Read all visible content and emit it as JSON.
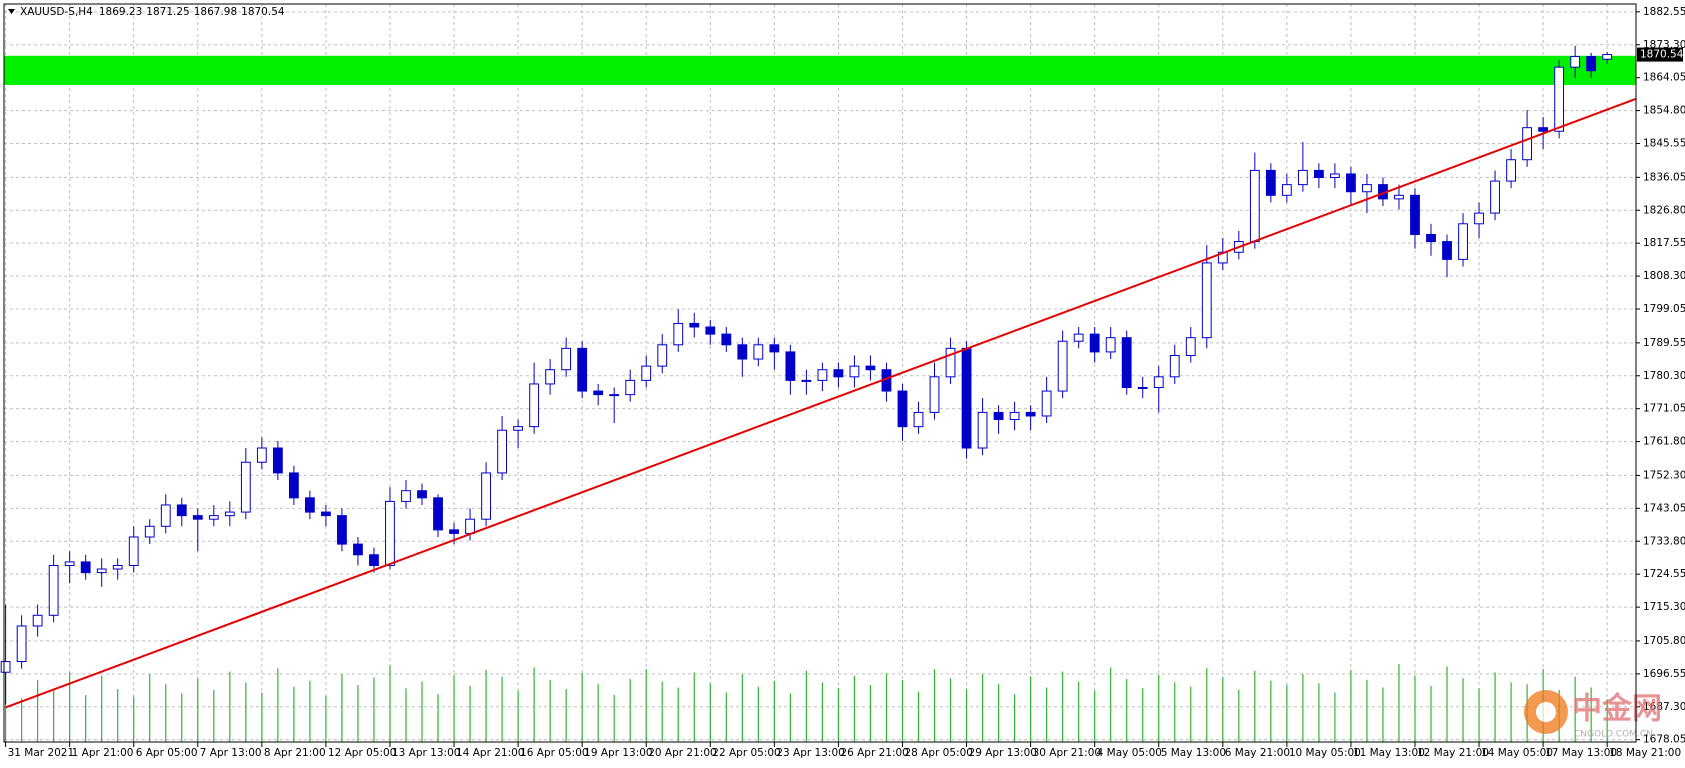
{
  "chart_data": {
    "type": "candlestick",
    "title": "XAUUSD-S,H4",
    "candles": {
      "open": [
        1697,
        1700,
        1710,
        1713,
        1727,
        1728,
        1725,
        1726,
        1727,
        1735,
        1738,
        1744,
        1741,
        1740,
        1741,
        1742,
        1756,
        1760,
        1753,
        1746,
        1742,
        1741,
        1733,
        1730,
        1727,
        1745,
        1748,
        1746,
        1737,
        1736,
        1740,
        1753,
        1765,
        1766,
        1778,
        1782,
        1788,
        1776,
        1775,
        1775,
        1779,
        1783,
        1789,
        1795,
        1794,
        1792,
        1789,
        1785,
        1789,
        1787,
        1779,
        1779,
        1782,
        1780,
        1783,
        1782,
        1776,
        1766,
        1770,
        1780,
        1788,
        1760,
        1770,
        1768,
        1770,
        1769,
        1776,
        1790,
        1792,
        1787,
        1791,
        1777,
        1777,
        1780,
        1786,
        1791,
        1812,
        1815,
        1818,
        1838,
        1831,
        1834,
        1838,
        1836,
        1837,
        1832,
        1834,
        1830,
        1831,
        1820,
        1818,
        1813,
        1823,
        1826,
        1835,
        1841,
        1850,
        1849,
        1867,
        1870,
        1869.23
      ],
      "high": [
        1716,
        1713,
        1716,
        1730,
        1731,
        1730,
        1729,
        1729,
        1738,
        1740,
        1747,
        1746,
        1743,
        1744,
        1745,
        1760,
        1763,
        1762,
        1755,
        1748,
        1744,
        1743,
        1735,
        1732,
        1749,
        1751,
        1750,
        1747,
        1739,
        1743,
        1756,
        1769,
        1768,
        1784,
        1785,
        1791,
        1790,
        1778,
        1777,
        1782,
        1786,
        1792,
        1799,
        1798,
        1796,
        1794,
        1791,
        1791,
        1791,
        1789,
        1782,
        1784,
        1784,
        1786,
        1786,
        1784,
        1778,
        1773,
        1784,
        1791,
        1790,
        1774,
        1772,
        1773,
        1772,
        1780,
        1793,
        1794,
        1794,
        1794,
        1793,
        1780,
        1783,
        1789,
        1794,
        1817,
        1819,
        1821,
        1843,
        1840,
        1837,
        1846,
        1840,
        1840,
        1839,
        1837,
        1836,
        1834,
        1833,
        1823,
        1820,
        1826,
        1829,
        1838,
        1844,
        1855,
        1853,
        1869,
        1873,
        1871,
        1871.25
      ],
      "low": [
        1688,
        1698,
        1707,
        1711,
        1722,
        1723,
        1721,
        1723,
        1725,
        1733,
        1736,
        1738,
        1731,
        1738,
        1738,
        1740,
        1754,
        1751,
        1744,
        1740,
        1738,
        1731,
        1727,
        1725,
        1726,
        1743,
        1744,
        1735,
        1733,
        1734,
        1738,
        1751,
        1760,
        1764,
        1775,
        1780,
        1774,
        1772,
        1767,
        1773,
        1777,
        1781,
        1787,
        1791,
        1789,
        1787,
        1780,
        1783,
        1782,
        1775,
        1775,
        1776,
        1777,
        1777,
        1779,
        1773,
        1762,
        1764,
        1768,
        1778,
        1757,
        1758,
        1764,
        1765,
        1765,
        1767,
        1774,
        1788,
        1784,
        1785,
        1775,
        1774,
        1770,
        1778,
        1784,
        1788,
        1810,
        1813,
        1816,
        1829,
        1829,
        1832,
        1833,
        1833,
        1828,
        1826,
        1828,
        1827,
        1816,
        1814,
        1808,
        1811,
        1819,
        1824,
        1833,
        1839,
        1844,
        1847,
        1864,
        1864,
        1867.98
      ],
      "close": [
        1700,
        1710,
        1713,
        1727,
        1728,
        1725,
        1726,
        1727,
        1735,
        1738,
        1744,
        1741,
        1740,
        1741,
        1742,
        1756,
        1760,
        1753,
        1746,
        1742,
        1741,
        1733,
        1730,
        1727,
        1745,
        1748,
        1746,
        1737,
        1736,
        1740,
        1753,
        1765,
        1766,
        1778,
        1782,
        1788,
        1776,
        1775,
        1775,
        1779,
        1783,
        1789,
        1795,
        1794,
        1792,
        1789,
        1785,
        1789,
        1787,
        1779,
        1779,
        1782,
        1780,
        1783,
        1782,
        1776,
        1766,
        1770,
        1780,
        1788,
        1760,
        1770,
        1768,
        1770,
        1769,
        1776,
        1790,
        1792,
        1787,
        1791,
        1777,
        1777,
        1780,
        1786,
        1791,
        1812,
        1815,
        1818,
        1838,
        1831,
        1834,
        1838,
        1836,
        1837,
        1832,
        1834,
        1830,
        1831,
        1820,
        1818,
        1813,
        1823,
        1826,
        1835,
        1841,
        1850,
        1849,
        1867,
        1870,
        1866,
        1870.54
      ],
      "color": "#0000c8"
    },
    "volume": [
      9200,
      5200,
      7400,
      6100,
      8300,
      5600,
      7900,
      6300,
      5400,
      8100,
      6900,
      5800,
      7600,
      6200,
      8400,
      7100,
      5900,
      8800,
      6600,
      7300,
      5500,
      8100,
      6800,
      7700,
      9100,
      6400,
      7200,
      5700,
      8000,
      6700,
      8600,
      7800,
      6100,
      8900,
      7400,
      6300,
      8200,
      6900,
      5600,
      7500,
      8700,
      7200,
      6500,
      8300,
      7000,
      5900,
      8100,
      6600,
      7300,
      5800,
      8500,
      7100,
      6400,
      7900,
      6800,
      8200,
      7400,
      6000,
      8700,
      7600,
      6300,
      8100,
      6900,
      5700,
      7800,
      6500,
      8400,
      7200,
      6100,
      8900,
      7500,
      6400,
      8000,
      7100,
      6600,
      8800,
      7700,
      6200,
      8500,
      7300,
      6800,
      8100,
      7000,
      5900,
      8600,
      7400,
      6500,
      9300,
      7900,
      6700,
      9000,
      7600,
      6400,
      8300,
      7100,
      6900,
      8700,
      6200,
      7800,
      6500,
      5100
    ],
    "volume_color": "#32b432",
    "trendline": {
      "x": [
        0,
        101.8
      ],
      "y": [
        1687.1,
        1858.1
      ],
      "color": "#e60000"
    },
    "zone": {
      "low": 1862,
      "high": 1870.2,
      "color": "#00f000"
    },
    "xlim": [
      -0.1,
      101.8
    ],
    "ylim": [
      1677.4,
      1884.75
    ],
    "yticks": [
      {
        "value": 1882.55,
        "label": "1882.55"
      },
      {
        "value": 1873.3,
        "label": "1873.30"
      },
      {
        "value": 1864.05,
        "label": "1864.05"
      },
      {
        "value": 1854.8,
        "label": "1854.80"
      },
      {
        "value": 1845.55,
        "label": "1845.55"
      },
      {
        "value": 1836.05,
        "label": "1836.05"
      },
      {
        "value": 1826.8,
        "label": "1826.80"
      },
      {
        "value": 1817.55,
        "label": "1817.55"
      },
      {
        "value": 1808.3,
        "label": "1808.30"
      },
      {
        "value": 1799.05,
        "label": "1799.05"
      },
      {
        "value": 1789.55,
        "label": "1789.55"
      },
      {
        "value": 1780.3,
        "label": "1780.30"
      },
      {
        "value": 1771.05,
        "label": "1771.05"
      },
      {
        "value": 1761.8,
        "label": "1761.80"
      },
      {
        "value": 1752.3,
        "label": "1752.30"
      },
      {
        "value": 1743.05,
        "label": "1743.05"
      },
      {
        "value": 1733.8,
        "label": "1733.80"
      },
      {
        "value": 1724.55,
        "label": "1724.55"
      },
      {
        "value": 1715.3,
        "label": "1715.30"
      },
      {
        "value": 1705.8,
        "label": "1705.80"
      },
      {
        "value": 1696.55,
        "label": "1696.55"
      },
      {
        "value": 1687.3,
        "label": "1687.30"
      },
      {
        "value": 1678.05,
        "label": "1678.05"
      }
    ],
    "xticks": [
      {
        "value": 0,
        "label": "31 Mar 2021"
      },
      {
        "value": 4,
        "label": "1 Apr 21:00"
      },
      {
        "value": 8,
        "label": "6 Apr 05:00"
      },
      {
        "value": 12,
        "label": "7 Apr 13:00"
      },
      {
        "value": 16,
        "label": "8 Apr 21:00"
      },
      {
        "value": 20,
        "label": "12 Apr 05:00"
      },
      {
        "value": 24,
        "label": "13 Apr 13:00"
      },
      {
        "value": 28,
        "label": "14 Apr 21:00"
      },
      {
        "value": 32,
        "label": "16 Apr 05:00"
      },
      {
        "value": 36,
        "label": "19 Apr 13:00"
      },
      {
        "value": 40,
        "label": "20 Apr 21:00"
      },
      {
        "value": 44,
        "label": "22 Apr 05:00"
      },
      {
        "value": 48,
        "label": "23 Apr 13:00"
      },
      {
        "value": 52,
        "label": "26 Apr 21:00"
      },
      {
        "value": 56,
        "label": "28 Apr 05:00"
      },
      {
        "value": 60,
        "label": "29 Apr 13:00"
      },
      {
        "value": 64,
        "label": "30 Apr 21:00"
      },
      {
        "value": 68,
        "label": "4 May 05:00"
      },
      {
        "value": 72,
        "label": "5 May 13:00"
      },
      {
        "value": 76,
        "label": "6 May 21:00"
      },
      {
        "value": 80,
        "label": "10 May 05:00"
      },
      {
        "value": 84,
        "label": "11 May 13:00"
      },
      {
        "value": 88,
        "label": "12 May 21:00"
      },
      {
        "value": 92,
        "label": "14 May 05:00"
      },
      {
        "value": 96,
        "label": "17 May 13:00"
      },
      {
        "value": 100,
        "label": "18 May 21:00"
      }
    ],
    "grid": true,
    "watermark": {
      "text": "中金网",
      "url": "CNGOLD.COM.CN"
    }
  }
}
